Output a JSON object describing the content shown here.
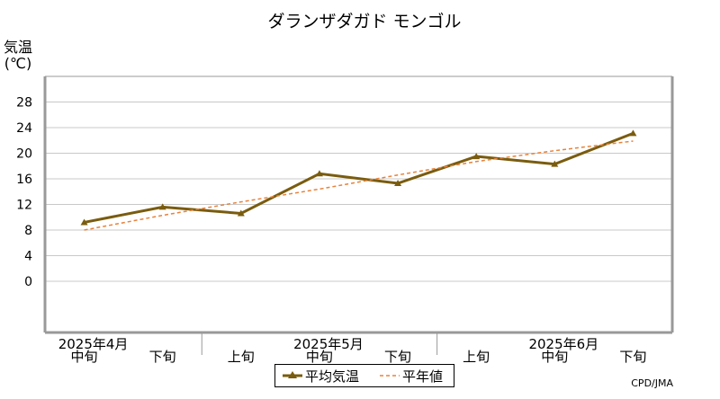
{
  "chart_data": {
    "type": "line",
    "title": "ダランザダガド モンゴル",
    "ylabel_line1": "気温",
    "ylabel_line2": "(℃)",
    "ylim": [
      -8,
      32
    ],
    "yticks": [
      0,
      4,
      8,
      12,
      16,
      20,
      24,
      28
    ],
    "x_tick_labels": [
      "中旬",
      "下旬",
      "上旬",
      "中旬",
      "下旬",
      "上旬",
      "中旬",
      "下旬"
    ],
    "month_labels": [
      {
        "label": "2025年4月",
        "index": 0
      },
      {
        "label": "2025年5月",
        "index": 3
      },
      {
        "label": "2025年6月",
        "index": 6
      }
    ],
    "month_boundaries_after_index": [
      1,
      4
    ],
    "grid": true,
    "legend_position": "bottom-center",
    "series": [
      {
        "name": "平均気温",
        "style": "solid-triangle-markers",
        "color": "#7a5c0f",
        "values": [
          9.2,
          11.6,
          10.6,
          16.8,
          15.3,
          19.5,
          18.3,
          23.1
        ]
      },
      {
        "name": "平年値",
        "style": "dashed",
        "color": "#e8823a",
        "values": [
          8.0,
          10.3,
          12.4,
          14.4,
          16.6,
          18.7,
          20.4,
          21.9
        ]
      }
    ],
    "credit": "CPD/JMA"
  }
}
